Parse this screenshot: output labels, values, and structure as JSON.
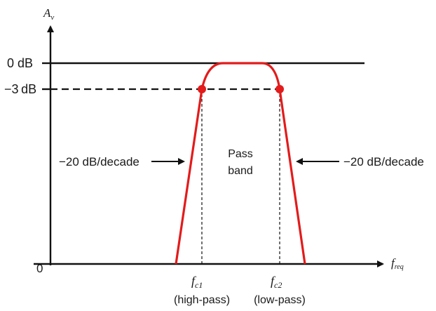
{
  "diagram": {
    "y_axis_label_main": "A",
    "y_axis_label_sub": "v",
    "x_axis_label_main": "f",
    "x_axis_label_sub": "req",
    "zero_db_label": "0 dB",
    "minus3db_label": "−3 dB",
    "origin_label": "0",
    "passband_line1": "Pass",
    "passband_line2": "band",
    "rolloff_left": "−20 dB/decade",
    "rolloff_right": "−20 dB/decade",
    "fc1_main": "f",
    "fc1_sub": "c1",
    "fc1_note": "(high-pass)",
    "fc2_main": "f",
    "fc2_sub": "c2",
    "fc2_note": "(low-pass)",
    "curve_color": "#e31b1b",
    "marker_color": "#e31b1b"
  }
}
